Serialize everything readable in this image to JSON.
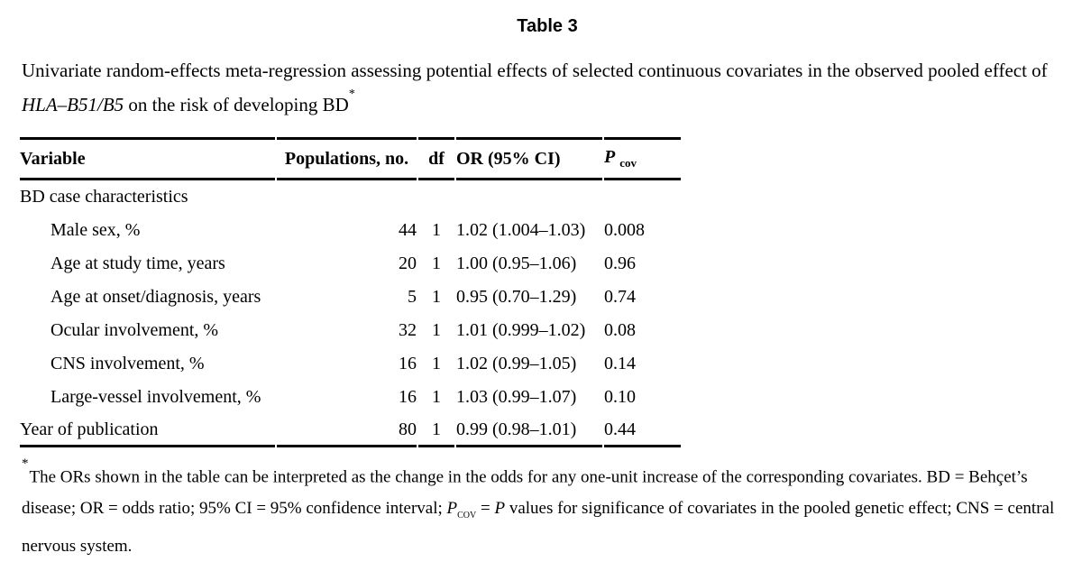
{
  "title": "Table 3",
  "caption": {
    "text_before_gene": "Univariate random-effects meta-regression assessing potential effects of selected continuous covariates in the observed pooled effect of ",
    "gene": "HLA–B51/B5",
    "text_after_gene": " on the risk of developing BD",
    "footnote_marker": "*"
  },
  "table": {
    "header": {
      "variable": "Variable",
      "populations": "Populations, no.",
      "df": "df",
      "or_ci": "OR (95% CI)",
      "p": "P",
      "p_sub": "cov"
    },
    "section_label": "BD case characteristics",
    "rows": [
      {
        "variable": "Male sex, %",
        "populations": "44",
        "df": "1",
        "or_ci": "1.02 (1.004–1.03)",
        "p_cov": "0.008"
      },
      {
        "variable": "Age at study time, years",
        "populations": "20",
        "df": "1",
        "or_ci": "1.00 (0.95–1.06)",
        "p_cov": "0.96"
      },
      {
        "variable": "Age at onset/diagnosis, years",
        "populations": "5",
        "df": "1",
        "or_ci": "0.95 (0.70–1.29)",
        "p_cov": "0.74"
      },
      {
        "variable": "Ocular involvement, %",
        "populations": "32",
        "df": "1",
        "or_ci": "1.01 (0.999–1.02)",
        "p_cov": "0.08"
      },
      {
        "variable": "CNS involvement, %",
        "populations": "16",
        "df": "1",
        "or_ci": "1.02 (0.99–1.05)",
        "p_cov": "0.14"
      },
      {
        "variable": "Large-vessel involvement, %",
        "populations": "16",
        "df": "1",
        "or_ci": "1.03 (0.99–1.07)",
        "p_cov": "0.10"
      },
      {
        "variable": "Year of publication",
        "populations": "80",
        "df": "1",
        "or_ci": "0.99 (0.98–1.01)",
        "p_cov": "0.44"
      }
    ]
  },
  "footnote": {
    "marker": "*",
    "part1": "The ORs shown in the table can be interpreted as the change in the odds for any one-unit increase of the corresponding covariates. BD = Behçet’s disease; OR = odds ratio; 95% CI = 95% confidence interval; ",
    "p_italic": "P",
    "p_sub": "cov",
    "equals": " = ",
    "p2_italic": "P",
    "part2": " values for significance of covariates in the pooled genetic effect; CNS = central nervous system."
  }
}
